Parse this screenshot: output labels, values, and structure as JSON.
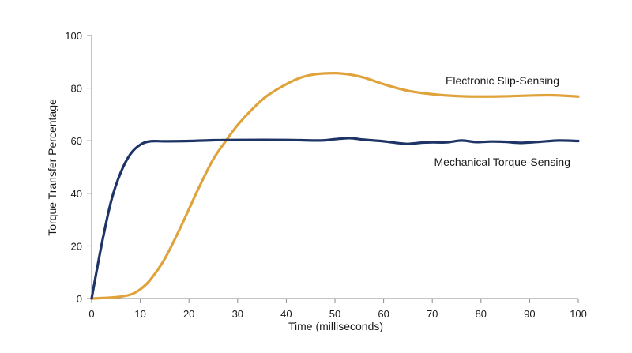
{
  "chart_data": {
    "type": "line",
    "title": "",
    "xlabel": "Time (milliseconds)",
    "ylabel": "Torque Transfer Percentage",
    "xlim": [
      0,
      100
    ],
    "ylim": [
      0,
      100
    ],
    "x_ticks": [
      0,
      10,
      20,
      30,
      40,
      50,
      60,
      70,
      80,
      90,
      100
    ],
    "y_ticks": [
      0,
      20,
      40,
      60,
      80,
      100
    ],
    "grid": false,
    "legend": "inline labels",
    "series": [
      {
        "name": "Electronic Slip-Sensing",
        "color": "#E0A23A",
        "x": [
          0,
          5,
          8,
          10,
          12,
          15,
          18,
          20,
          22,
          25,
          28,
          30,
          33,
          36,
          40,
          43,
          46,
          50,
          53,
          56,
          60,
          65,
          70,
          75,
          80,
          85,
          90,
          95,
          100
        ],
        "y": [
          0,
          0.5,
          1.5,
          3.5,
          7,
          15,
          26,
          34,
          42,
          53,
          61,
          66,
          72,
          77,
          81.5,
          84,
          85.3,
          85.7,
          85.2,
          84,
          81.5,
          79,
          77.7,
          77,
          76.8,
          76.9,
          77.2,
          77.3,
          76.8
        ]
      },
      {
        "name": "Mechanical Torque-Sensing",
        "color": "#1F3466",
        "x": [
          0,
          2,
          4,
          6,
          8,
          10,
          12,
          15,
          20,
          25,
          30,
          40,
          47,
          50,
          53,
          56,
          60,
          63,
          65,
          68,
          70,
          73,
          76,
          79,
          82,
          85,
          88,
          92,
          96,
          100
        ],
        "y": [
          0,
          20,
          37,
          48,
          55,
          58.5,
          59.8,
          59.8,
          59.9,
          60.2,
          60.3,
          60.3,
          60.1,
          60.6,
          61,
          60.4,
          59.8,
          59.1,
          58.8,
          59.3,
          59.4,
          59.4,
          60.1,
          59.5,
          59.7,
          59.6,
          59.2,
          59.6,
          60.1,
          59.9
        ]
      }
    ]
  }
}
